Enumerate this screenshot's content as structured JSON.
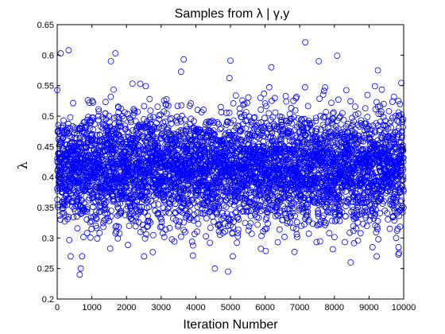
{
  "chart_data": {
    "type": "scatter",
    "title": "Samples from λ | γ,y",
    "xlabel": "Iteration Number",
    "ylabel": "λ",
    "xlim": [
      0,
      10000
    ],
    "ylim": [
      0.2,
      0.65
    ],
    "xticks": [
      0,
      1000,
      2000,
      3000,
      4000,
      5000,
      6000,
      7000,
      8000,
      9000,
      10000
    ],
    "yticks": [
      0.2,
      0.25,
      0.3,
      0.35,
      0.4,
      0.45,
      0.5,
      0.55,
      0.6,
      0.65
    ],
    "x_tick_labels": [
      "0",
      "1000",
      "2000",
      "3000",
      "4000",
      "5000",
      "6000",
      "7000",
      "8000",
      "9000",
      "10000"
    ],
    "y_tick_labels": [
      "0.2",
      "0.25",
      "0.3",
      "0.35",
      "0.4",
      "0.45",
      "0.5",
      "0.55",
      "0.6",
      "0.65"
    ],
    "marker": "circle-open",
    "marker_color": "#0000ff",
    "grid": false,
    "series": [
      {
        "n_samples": 10000,
        "center": 0.415,
        "typical_range": [
          0.3,
          0.53
        ],
        "observed_min": 0.24,
        "observed_max": 0.62,
        "notable_points": [
          {
            "x": 100,
            "y": 0.603
          },
          {
            "x": 330,
            "y": 0.608
          },
          {
            "x": 650,
            "y": 0.24
          },
          {
            "x": 680,
            "y": 0.25
          },
          {
            "x": 1680,
            "y": 0.603
          },
          {
            "x": 1550,
            "y": 0.59
          },
          {
            "x": 3650,
            "y": 0.593
          },
          {
            "x": 4550,
            "y": 0.25
          },
          {
            "x": 4930,
            "y": 0.245
          },
          {
            "x": 5000,
            "y": 0.591
          },
          {
            "x": 6180,
            "y": 0.58
          },
          {
            "x": 7160,
            "y": 0.621
          },
          {
            "x": 7550,
            "y": 0.59
          },
          {
            "x": 8080,
            "y": 0.599
          },
          {
            "x": 8470,
            "y": 0.26
          },
          {
            "x": 9100,
            "y": 0.285
          },
          {
            "x": 9850,
            "y": 0.285
          }
        ]
      }
    ]
  }
}
